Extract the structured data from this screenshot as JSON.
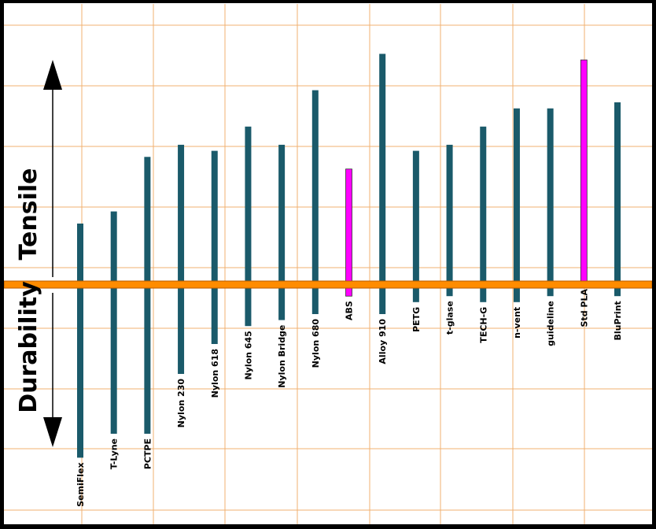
{
  "chart_data": {
    "type": "bar",
    "description_axes": {
      "up_label": "Tensile",
      "down_label": "Durability"
    },
    "categories": [
      "SemiFlex",
      "T-Lyne",
      "PCTPE",
      "Nylon 230",
      "Nylon 618",
      "Nylon 645",
      "Nylon Bridge",
      "Nylon 680",
      "ABS",
      "Alloy 910",
      "PETG",
      "t-glase",
      "TECH-G",
      "n-vent",
      "guideline",
      "Std PLA",
      "BluPrint"
    ],
    "series": [
      {
        "name": "Tensile",
        "values": [
          10,
          12,
          21,
          23,
          22,
          26,
          23,
          32,
          19,
          38,
          22,
          23,
          26,
          29,
          29,
          37,
          30
        ]
      },
      {
        "name": "Durability",
        "values": [
          29,
          25,
          25,
          15,
          10,
          7,
          6,
          5,
          2,
          5,
          3,
          2,
          3,
          3,
          2,
          0,
          2
        ]
      }
    ],
    "highlighted": [
      "ABS",
      "Std PLA"
    ],
    "colors": {
      "bar": "#1a5a6a",
      "highlight": "#ff00ff",
      "baseline": "#ff8c00",
      "grid": "#f0b070",
      "background": "#ffffff",
      "frame": "#000000"
    },
    "ylim_up": [
      0,
      40
    ],
    "ylim_down": [
      0,
      40
    ],
    "grid": true
  }
}
